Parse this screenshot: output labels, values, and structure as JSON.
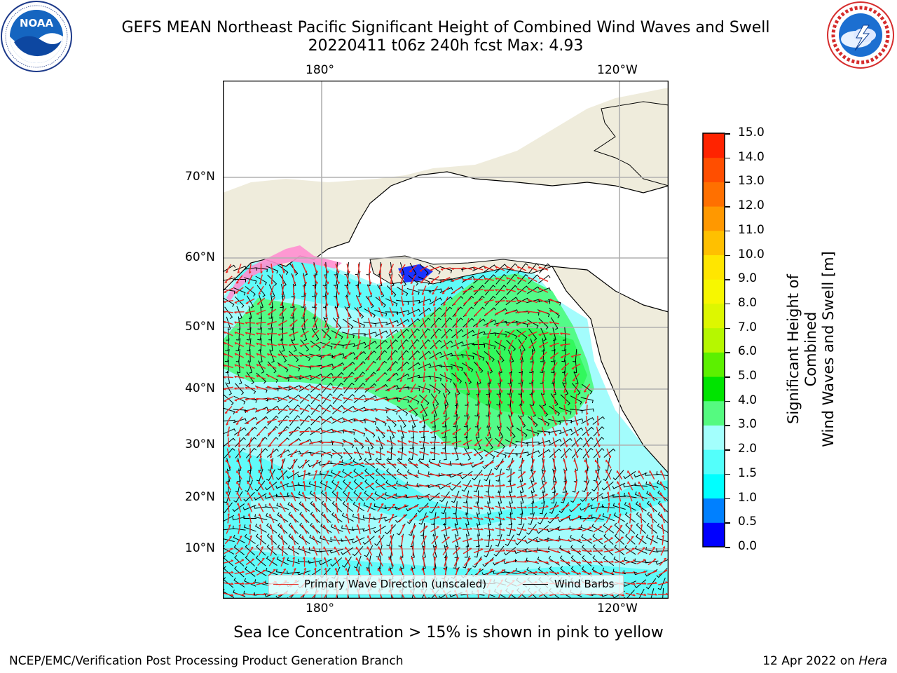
{
  "title": {
    "line1": "GEFS MEAN Northeast Pacific Significant Height of Combined Wind Waves and Swell",
    "line2": "20220411 t06z 240h fcst   Max: 4.93"
  },
  "logos": {
    "noaa": {
      "text": "NOAA",
      "ring_text": "NATIONAL OCEANIC AND ATMOSPHERIC ADMINISTRATION · U.S. DEPARTMENT OF COMMERCE"
    },
    "nws": {
      "ring_text": "NATIONAL WEATHER SERVICE"
    }
  },
  "map": {
    "lon_ticks_top": [
      "180°",
      "120°W"
    ],
    "lon_ticks_bottom": [
      "180°",
      "120°W"
    ],
    "lat_ticks": [
      "70°N",
      "60°N",
      "50°N",
      "40°N",
      "30°N",
      "20°N",
      "10°N"
    ],
    "colors": {
      "land": "#efecdc",
      "ocean_low": "#5ffbf9",
      "ocean_mid": "#a3fcfc",
      "green1": "#53fb88",
      "green2": "#32f85c",
      "wave_arrow": "#e8271f",
      "ice": "#ff8fd0"
    }
  },
  "legend": {
    "wave_label": "Primary Wave Direction (unscaled)",
    "wind_label": "Wind Barbs",
    "wave_color": "#e8271f",
    "wind_color": "#000000"
  },
  "colorbar": {
    "label_line1": "Significant Height of Combined",
    "label_line2": "Wind Waves and Swell [m]",
    "ticks": [
      "15.0",
      "14.0",
      "13.0",
      "12.0",
      "11.0",
      "10.0",
      "9.0",
      "8.0",
      "7.0",
      "6.0",
      "5.0",
      "4.0",
      "3.0",
      "2.0",
      "1.5",
      "1.0",
      "0.5",
      "0.0"
    ],
    "colors": [
      "#0000ff",
      "#0080ff",
      "#00ffff",
      "#53fffb",
      "#a3fffd",
      "#55fa80",
      "#00e400",
      "#5cf000",
      "#b6f700",
      "#ddf700",
      "#f7f700",
      "#ffe600",
      "#ffc000",
      "#ff9800",
      "#ff7000",
      "#ff4e00",
      "#ff2300"
    ]
  },
  "caption": "Sea Ice Concentration > 15% is shown in pink to yellow",
  "footer": {
    "left": "NCEP/EMC/Verification Post Processing Product Generation Branch",
    "right_date": "12 Apr 2022 on",
    "right_host": "Hera"
  }
}
